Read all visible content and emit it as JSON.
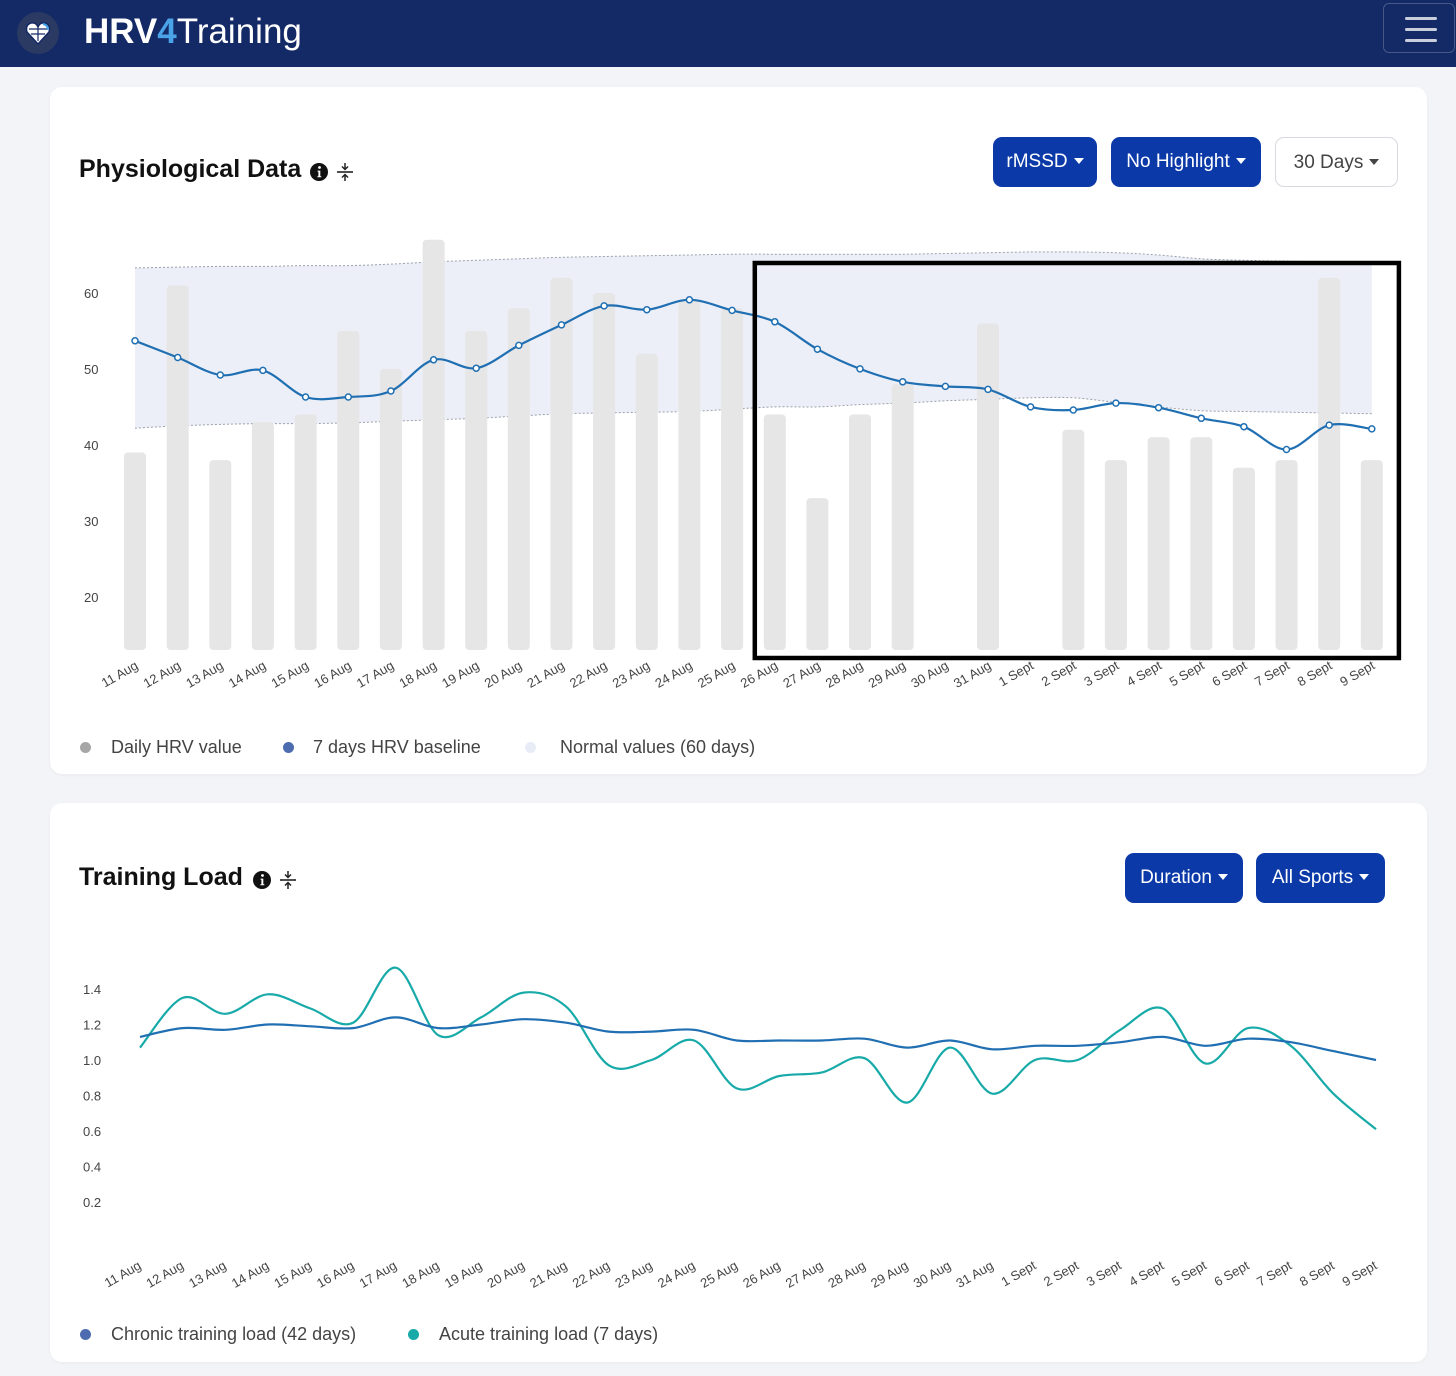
{
  "app": {
    "brand_bold": "HRV",
    "brand_num": "4",
    "brand_light": "Training"
  },
  "physio": {
    "title": "Physiological Data",
    "buttons": {
      "metric": "rMSSD",
      "highlight": "No Highlight",
      "range": "30 Days"
    },
    "legend": {
      "daily": "Daily HRV value",
      "baseline": "7 days HRV baseline",
      "normal": "Normal values (60 days)"
    }
  },
  "training": {
    "title": "Training Load",
    "buttons": {
      "metric": "Duration",
      "sport": "All Sports"
    },
    "legend": {
      "chronic": "Chronic training load (42 days)",
      "acute": "Acute training load (7 days)"
    }
  },
  "colors": {
    "navbar": "#142a66",
    "primary_button": "#0b3aa8",
    "bar": "#e6e6e6",
    "baseline_line": "#1f6fb2",
    "normal_band": "#eceff8",
    "chronic_line": "#1f6fb2",
    "acute_line": "#17aaa8"
  },
  "chart_data": [
    {
      "type": "bar",
      "title": "Physiological Data",
      "categories": [
        "11 Aug",
        "12 Aug",
        "13 Aug",
        "14 Aug",
        "15 Aug",
        "16 Aug",
        "17 Aug",
        "18 Aug",
        "19 Aug",
        "20 Aug",
        "21 Aug",
        "22 Aug",
        "23 Aug",
        "24 Aug",
        "25 Aug",
        "26 Aug",
        "27 Aug",
        "28 Aug",
        "29 Aug",
        "30 Aug",
        "31 Aug",
        "1 Sept",
        "2 Sept",
        "3 Sept",
        "4 Sept",
        "5 Sept",
        "6 Sept",
        "7 Sept",
        "8 Sept",
        "9 Sept"
      ],
      "yticks": [
        20,
        30,
        40,
        50,
        60
      ],
      "ylim": [
        13,
        70
      ],
      "series": [
        {
          "name": "Daily HRV value",
          "type": "bar",
          "values": [
            39,
            61,
            38,
            43,
            44,
            55,
            50,
            67,
            55,
            58,
            62,
            60,
            52,
            59,
            58,
            44,
            33,
            44,
            48,
            null,
            56,
            null,
            42,
            38,
            41,
            41,
            37,
            38,
            62,
            38
          ]
        },
        {
          "name": "7 days HRV baseline",
          "type": "line",
          "values": [
            53.7,
            51.5,
            49.2,
            49.8,
            46.3,
            46.3,
            47.1,
            51.2,
            50.1,
            53.1,
            55.8,
            58.3,
            57.8,
            59.1,
            57.7,
            56.2,
            52.6,
            50.0,
            48.3,
            47.7,
            47.3,
            45.0,
            44.6,
            45.5,
            44.9,
            43.5,
            42.4,
            39.4,
            42.6,
            42.1
          ]
        },
        {
          "name": "Normal values (60 days) upper",
          "type": "band",
          "values": [
            63.3,
            63.4,
            63.5,
            63.5,
            63.6,
            63.6,
            63.8,
            64.1,
            64.3,
            64.5,
            64.7,
            64.8,
            64.9,
            65.0,
            65.1,
            65.1,
            65.1,
            65.1,
            65.1,
            65.2,
            65.3,
            65.4,
            65.4,
            65.3,
            65.0,
            64.5,
            64.3,
            64.2,
            64.1,
            64.0
          ]
        },
        {
          "name": "Normal values (60 days) lower",
          "type": "band",
          "values": [
            42.2,
            42.5,
            42.7,
            42.8,
            42.8,
            42.9,
            43.1,
            43.3,
            43.5,
            43.8,
            44.1,
            44.2,
            44.3,
            44.4,
            44.7,
            45.0,
            45.0,
            45.3,
            45.5,
            45.8,
            46.0,
            46.2,
            46.2,
            45.6,
            45.0,
            44.5,
            44.4,
            44.3,
            44.2,
            44.1
          ]
        }
      ],
      "highlight_box": {
        "from": "26 Aug",
        "to": "9 Sept"
      }
    },
    {
      "type": "line",
      "title": "Training Load",
      "categories": [
        "11 Aug",
        "12 Aug",
        "13 Aug",
        "14 Aug",
        "15 Aug",
        "16 Aug",
        "17 Aug",
        "18 Aug",
        "19 Aug",
        "20 Aug",
        "21 Aug",
        "22 Aug",
        "23 Aug",
        "24 Aug",
        "25 Aug",
        "26 Aug",
        "27 Aug",
        "28 Aug",
        "29 Aug",
        "30 Aug",
        "31 Aug",
        "1 Sept",
        "2 Sept",
        "3 Sept",
        "4 Sept",
        "5 Sept",
        "6 Sept",
        "7 Sept",
        "8 Sept",
        "9 Sept"
      ],
      "yticks": [
        "0.2",
        "0.4",
        "0.6",
        "0.8",
        "1.0",
        "1.2",
        "1.4"
      ],
      "ylim": [
        0.1,
        1.6
      ],
      "series": [
        {
          "name": "Chronic training load (42 days)",
          "values": [
            1.13,
            1.18,
            1.17,
            1.2,
            1.19,
            1.18,
            1.24,
            1.18,
            1.2,
            1.23,
            1.21,
            1.16,
            1.16,
            1.17,
            1.11,
            1.11,
            1.11,
            1.12,
            1.07,
            1.11,
            1.06,
            1.08,
            1.08,
            1.1,
            1.13,
            1.08,
            1.12,
            1.1,
            1.05,
            1.0
          ]
        },
        {
          "name": "Acute training load (7 days)",
          "values": [
            1.07,
            1.35,
            1.26,
            1.37,
            1.29,
            1.21,
            1.52,
            1.14,
            1.24,
            1.38,
            1.3,
            0.97,
            1.0,
            1.11,
            0.84,
            0.91,
            0.93,
            1.01,
            0.76,
            1.07,
            0.81,
            1.0,
            1.0,
            1.17,
            1.29,
            0.98,
            1.18,
            1.08,
            0.81,
            0.61
          ]
        }
      ]
    }
  ]
}
